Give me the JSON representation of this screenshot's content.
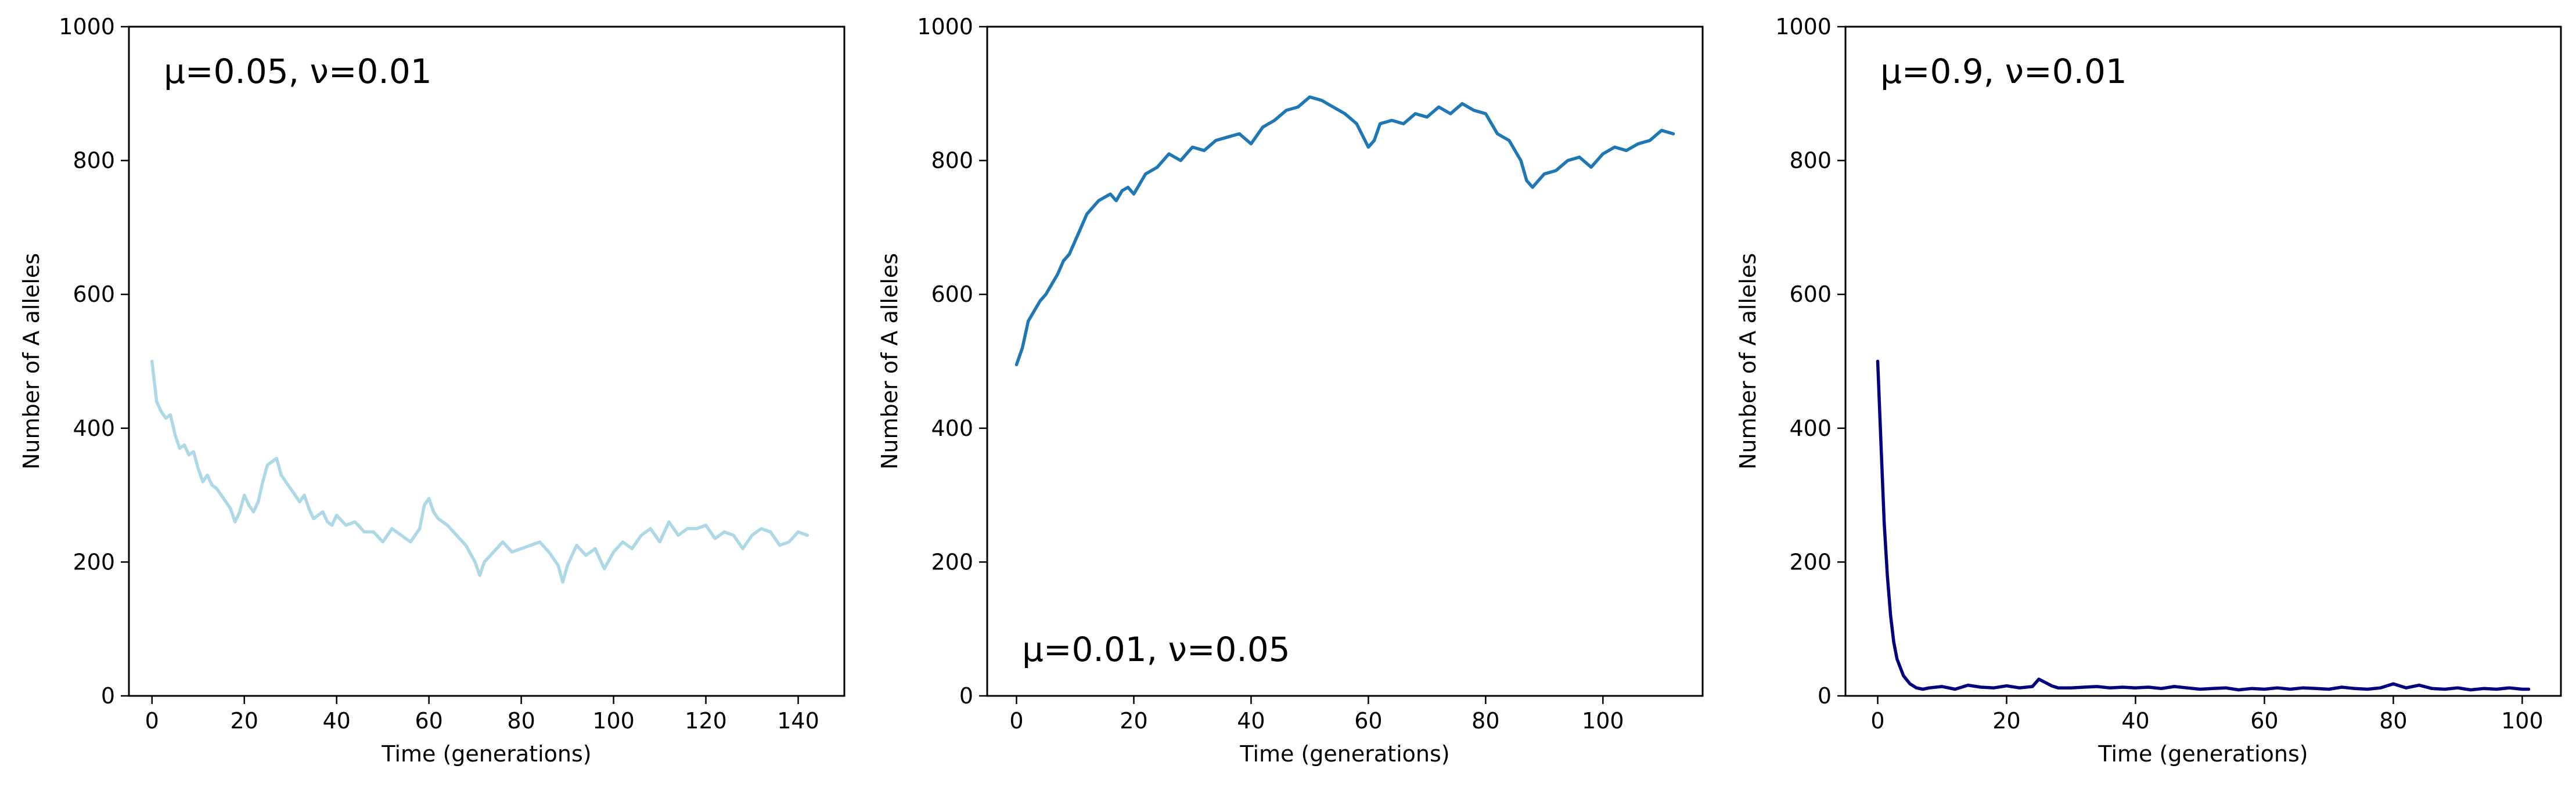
{
  "chart_data": [
    {
      "type": "line",
      "title": "",
      "xlabel": "Time (generations)",
      "ylabel": "Number of A alleles",
      "annotation": "μ=0.05, ν=0.01",
      "annotation_position": "top-left",
      "xlim": [
        -5,
        150
      ],
      "ylim": [
        0,
        1000
      ],
      "xticks": [
        0,
        20,
        40,
        60,
        80,
        100,
        120,
        140
      ],
      "yticks": [
        0,
        200,
        400,
        600,
        800,
        1000
      ],
      "color": "#add8e6",
      "series": [
        {
          "x": [
            0,
            1,
            2,
            3,
            4,
            5,
            6,
            7,
            8,
            9,
            10,
            11,
            12,
            13,
            14,
            15,
            16,
            17,
            18,
            19,
            20,
            21,
            22,
            23,
            24,
            25,
            26,
            27,
            28,
            29,
            30,
            31,
            32,
            33,
            34,
            35,
            36,
            37,
            38,
            39,
            40,
            42,
            44,
            46,
            48,
            50,
            52,
            54,
            56,
            58,
            59,
            60,
            61,
            62,
            64,
            66,
            68,
            70,
            71,
            72,
            74,
            76,
            78,
            80,
            82,
            84,
            86,
            88,
            89,
            90,
            92,
            94,
            96,
            98,
            100,
            102,
            104,
            106,
            108,
            110,
            112,
            114,
            116,
            118,
            120,
            122,
            124,
            126,
            128,
            130,
            132,
            134,
            136,
            138,
            140,
            142
          ],
          "y": [
            500,
            440,
            425,
            415,
            420,
            390,
            370,
            375,
            360,
            365,
            340,
            320,
            330,
            315,
            310,
            300,
            290,
            280,
            260,
            275,
            300,
            285,
            275,
            290,
            320,
            345,
            350,
            355,
            330,
            320,
            310,
            300,
            290,
            300,
            280,
            265,
            270,
            275,
            260,
            255,
            270,
            255,
            260,
            245,
            245,
            230,
            250,
            240,
            230,
            250,
            285,
            295,
            275,
            265,
            255,
            240,
            225,
            200,
            180,
            200,
            215,
            230,
            215,
            220,
            225,
            230,
            215,
            195,
            170,
            195,
            225,
            210,
            220,
            190,
            215,
            230,
            220,
            240,
            250,
            230,
            260,
            240,
            250,
            250,
            255,
            235,
            245,
            240,
            220,
            240,
            250,
            245,
            225,
            230,
            245,
            240
          ]
        }
      ]
    },
    {
      "type": "line",
      "title": "",
      "xlabel": "Time (generations)",
      "ylabel": "Number of A alleles",
      "annotation": "μ=0.01, ν=0.05",
      "annotation_position": "bottom-left",
      "xlim": [
        -5,
        117
      ],
      "ylim": [
        0,
        1000
      ],
      "xticks": [
        0,
        20,
        40,
        60,
        80,
        100
      ],
      "yticks": [
        0,
        200,
        400,
        600,
        800,
        1000
      ],
      "color": "#1f77b4",
      "series": [
        {
          "x": [
            0,
            1,
            2,
            3,
            4,
            5,
            6,
            7,
            8,
            9,
            10,
            11,
            12,
            13,
            14,
            15,
            16,
            17,
            18,
            19,
            20,
            22,
            24,
            26,
            28,
            30,
            32,
            34,
            36,
            38,
            40,
            42,
            44,
            46,
            48,
            50,
            52,
            54,
            56,
            58,
            60,
            61,
            62,
            64,
            66,
            68,
            70,
            72,
            74,
            76,
            78,
            80,
            82,
            84,
            86,
            87,
            88,
            90,
            92,
            94,
            96,
            98,
            100,
            102,
            104,
            106,
            108,
            110,
            112
          ],
          "y": [
            495,
            520,
            560,
            575,
            590,
            600,
            615,
            630,
            650,
            660,
            680,
            700,
            720,
            730,
            740,
            745,
            750,
            740,
            755,
            760,
            750,
            780,
            790,
            810,
            800,
            820,
            815,
            830,
            835,
            840,
            825,
            850,
            860,
            875,
            880,
            895,
            890,
            880,
            870,
            855,
            820,
            830,
            855,
            860,
            855,
            870,
            865,
            880,
            870,
            885,
            875,
            870,
            840,
            830,
            800,
            770,
            760,
            780,
            785,
            800,
            805,
            790,
            810,
            820,
            815,
            825,
            830,
            845,
            840
          ]
        }
      ]
    },
    {
      "type": "line",
      "title": "",
      "xlabel": "Time (generations)",
      "ylabel": "Number of A alleles",
      "annotation": "μ=0.9, ν=0.01",
      "annotation_position": "top-left",
      "xlim": [
        -5,
        106
      ],
      "ylim": [
        0,
        1000
      ],
      "xticks": [
        0,
        20,
        40,
        60,
        80,
        100
      ],
      "yticks": [
        0,
        200,
        400,
        600,
        800,
        1000
      ],
      "color": "#00007f",
      "series": [
        {
          "x": [
            0,
            0.5,
            1,
            1.5,
            2,
            2.5,
            3,
            4,
            5,
            6,
            7,
            8,
            10,
            12,
            14,
            16,
            18,
            20,
            22,
            24,
            25,
            26,
            27,
            28,
            30,
            32,
            34,
            36,
            38,
            40,
            42,
            44,
            46,
            48,
            50,
            52,
            54,
            56,
            58,
            60,
            62,
            64,
            66,
            68,
            70,
            72,
            74,
            76,
            78,
            80,
            82,
            84,
            86,
            88,
            90,
            92,
            94,
            96,
            98,
            100,
            101
          ],
          "y": [
            500,
            380,
            260,
            180,
            120,
            80,
            55,
            30,
            18,
            12,
            10,
            12,
            14,
            10,
            16,
            13,
            12,
            15,
            12,
            14,
            25,
            20,
            15,
            12,
            12,
            13,
            14,
            12,
            13,
            12,
            13,
            11,
            14,
            12,
            10,
            11,
            12,
            9,
            11,
            10,
            12,
            10,
            12,
            11,
            10,
            13,
            11,
            10,
            12,
            18,
            12,
            16,
            11,
            10,
            12,
            9,
            11,
            10,
            12,
            10,
            10
          ]
        }
      ]
    }
  ]
}
